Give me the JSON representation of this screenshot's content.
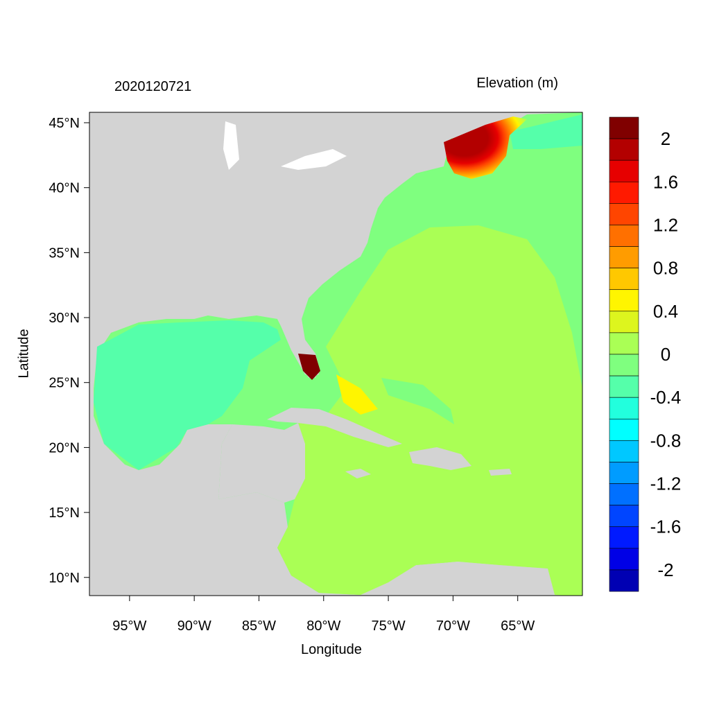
{
  "title_left": "2020120721",
  "title_right": "Elevation (m)",
  "xlabel": "Longitude",
  "ylabel": "Latitude",
  "lat_ticks": [
    "45°N",
    "40°N",
    "35°N",
    "30°N",
    "25°N",
    "20°N",
    "15°N",
    "10°N"
  ],
  "lon_ticks": [
    "95°W",
    "90°W",
    "85°W",
    "80°W",
    "75°W",
    "70°W",
    "65°W"
  ],
  "map_extent": {
    "lon": [
      -98.1,
      -60
    ],
    "lat": [
      8.6,
      45.8
    ]
  },
  "colorbar": {
    "labels": [
      "2",
      "1.6",
      "1.2",
      "0.8",
      "0.4",
      "0",
      "-0.4",
      "-0.8",
      "-1.2",
      "-1.6",
      "-2"
    ],
    "levels": [
      -2.2,
      -2,
      -1.8,
      -1.6,
      -1.4,
      -1.2,
      -1,
      -0.8,
      -0.6,
      -0.4,
      -0.2,
      0,
      0.2,
      0.4,
      0.6,
      0.8,
      1,
      1.2,
      1.4,
      1.6,
      1.8,
      2,
      2.2
    ],
    "colors_top_to_bottom": [
      "#800000",
      "#b30000",
      "#e60000",
      "#ff1a00",
      "#ff4500",
      "#ff7000",
      "#ff9c00",
      "#ffc800",
      "#fff500",
      "#ddf51e",
      "#aaff55",
      "#7fff7f",
      "#55ffaa",
      "#22ffdd",
      "#00ffff",
      "#00c8ff",
      "#009cff",
      "#0070ff",
      "#0045ff",
      "#001aff",
      "#0000e6",
      "#0000b3"
    ]
  },
  "colors": {
    "land": "#d3d3d3",
    "lakes": "#ffffff"
  }
}
